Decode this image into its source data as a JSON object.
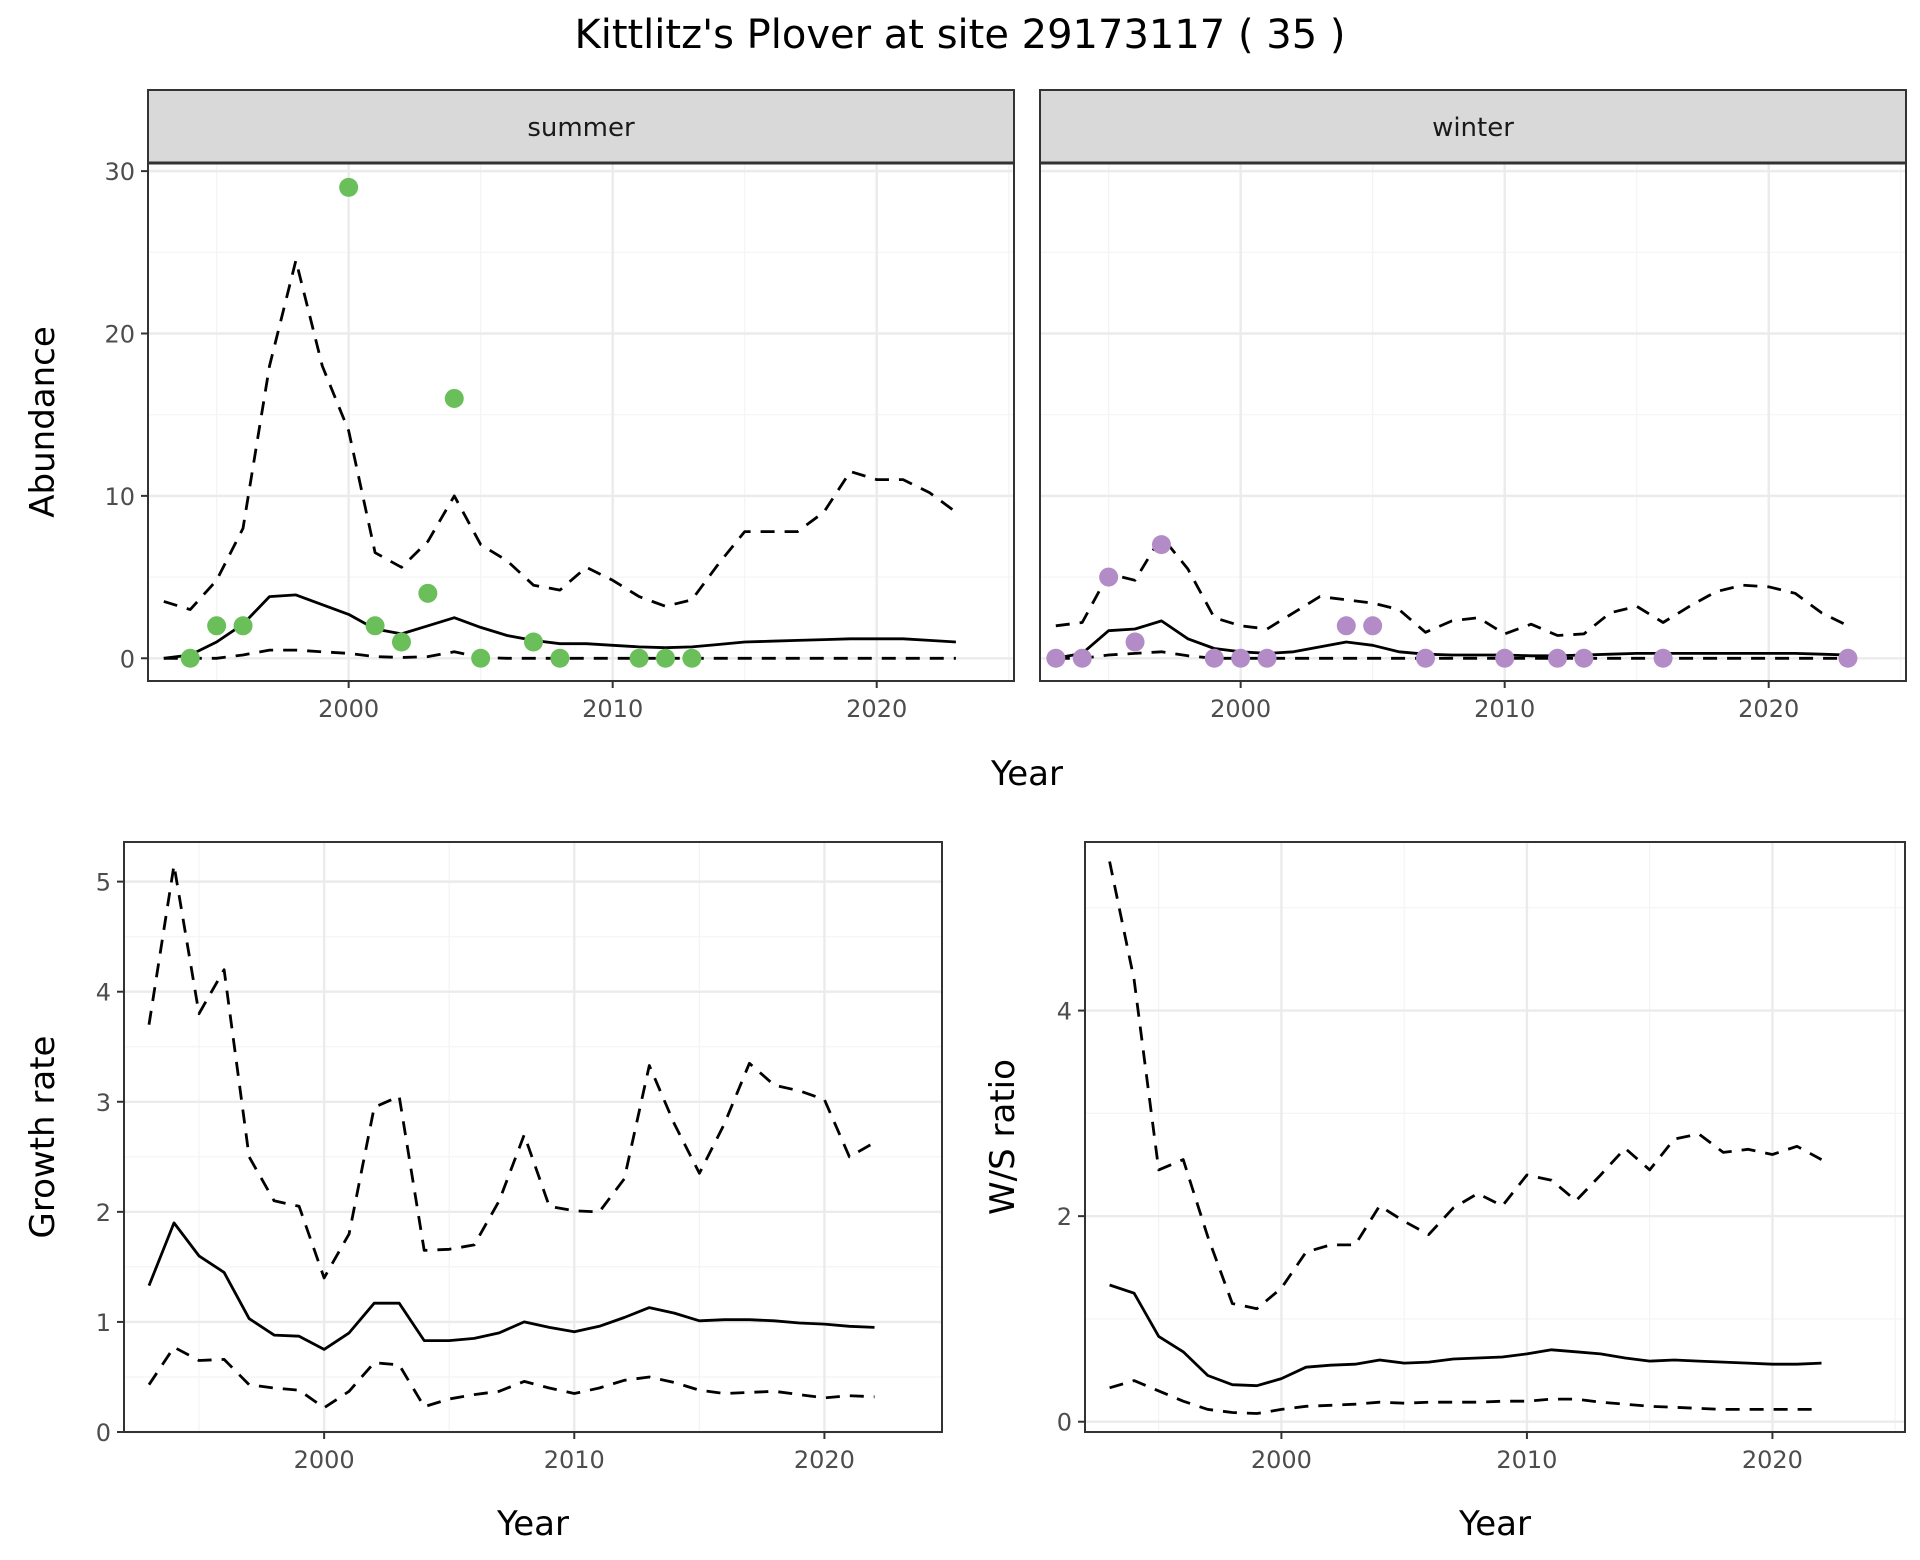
{
  "title": "Kittlitz's Plover at site 29173117 ( 35 )",
  "colors": {
    "summer_points": "#6abf5a",
    "winter_points": "#b38cc7",
    "line": "#000000",
    "panel_border": "#333333",
    "strip_fill": "#d9d9d9",
    "grid_major": "#ebebeb",
    "grid_minor": "#f4f4f4"
  },
  "chart_data": [
    {
      "id": "abundance",
      "type": "line",
      "facets": [
        {
          "strip": "summer",
          "point_color": "#6abf5a",
          "points": {
            "x": [
              1994,
              1995,
              1996,
              2000,
              2001,
              2002,
              2003,
              2004,
              2005,
              2007,
              2008,
              2011,
              2012,
              2013
            ],
            "y": [
              0,
              2,
              2,
              29,
              2,
              1,
              4,
              16,
              0,
              1,
              0,
              0,
              0,
              0
            ]
          },
          "mean": {
            "x": [
              1993,
              1994,
              1995,
              1996,
              1997,
              1998,
              1999,
              2000,
              2001,
              2002,
              2003,
              2004,
              2005,
              2006,
              2007,
              2008,
              2009,
              2010,
              2011,
              2012,
              2013,
              2014,
              2015,
              2016,
              2017,
              2018,
              2019,
              2020,
              2021,
              2022,
              2023
            ],
            "y": [
              0,
              0.2,
              1.0,
              2.1,
              3.8,
              3.9,
              3.3,
              2.7,
              1.8,
              1.5,
              2.0,
              2.5,
              1.9,
              1.4,
              1.1,
              0.9,
              0.9,
              0.8,
              0.7,
              0.65,
              0.7,
              0.85,
              1.0,
              1.05,
              1.1,
              1.15,
              1.2,
              1.2,
              1.2,
              1.1,
              1.0
            ]
          },
          "upper": {
            "x": [
              1993,
              1994,
              1995,
              1996,
              1997,
              1998,
              1999,
              2000,
              2001,
              2002,
              2003,
              2004,
              2005,
              2006,
              2007,
              2008,
              2009,
              2010,
              2011,
              2012,
              2013,
              2014,
              2015,
              2016,
              2017,
              2018,
              2019,
              2020,
              2021,
              2022,
              2023
            ],
            "y": [
              3.5,
              3.0,
              4.8,
              8.0,
              18.0,
              24.5,
              18.0,
              14.0,
              6.5,
              5.6,
              7.2,
              10.0,
              7.0,
              6.0,
              4.5,
              4.2,
              5.6,
              4.8,
              3.8,
              3.2,
              3.6,
              5.8,
              7.8,
              7.8,
              7.8,
              9.0,
              11.5,
              11.0,
              11.0,
              10.2,
              9.0
            ]
          },
          "lower": {
            "x": [
              1993,
              1994,
              1995,
              1996,
              1997,
              1998,
              1999,
              2000,
              2001,
              2002,
              2003,
              2004,
              2005,
              2006,
              2007,
              2008,
              2009,
              2010,
              2011,
              2012,
              2013,
              2014,
              2015,
              2016,
              2017,
              2018,
              2019,
              2020,
              2021,
              2022,
              2023
            ],
            "y": [
              0,
              0,
              0,
              0.2,
              0.5,
              0.5,
              0.4,
              0.3,
              0.1,
              0.05,
              0.1,
              0.4,
              0.05,
              0,
              0,
              0,
              0,
              0,
              0,
              0,
              0,
              0,
              0,
              0,
              0,
              0,
              0,
              0,
              0,
              0,
              0
            ]
          }
        },
        {
          "strip": "winter",
          "point_color": "#b38cc7",
          "points": {
            "x": [
              1993,
              1994,
              1995,
              1996,
              1997,
              1999,
              2000,
              2001,
              2004,
              2005,
              2007,
              2010,
              2012,
              2013,
              2016,
              2023
            ],
            "y": [
              0,
              0,
              5,
              1,
              7,
              0,
              0,
              0,
              2,
              2,
              0,
              0,
              0,
              0,
              0,
              0
            ]
          },
          "mean": {
            "x": [
              1993,
              1994,
              1995,
              1996,
              1997,
              1998,
              1999,
              2000,
              2001,
              2002,
              2003,
              2004,
              2005,
              2006,
              2007,
              2008,
              2009,
              2010,
              2011,
              2012,
              2013,
              2014,
              2015,
              2016,
              2017,
              2018,
              2019,
              2020,
              2021,
              2022,
              2023
            ],
            "y": [
              0,
              0.3,
              1.7,
              1.8,
              2.3,
              1.2,
              0.6,
              0.4,
              0.3,
              0.4,
              0.7,
              1.0,
              0.8,
              0.4,
              0.25,
              0.2,
              0.2,
              0.2,
              0.15,
              0.15,
              0.2,
              0.25,
              0.3,
              0.3,
              0.3,
              0.3,
              0.3,
              0.3,
              0.3,
              0.25,
              0.2
            ]
          },
          "upper": {
            "x": [
              1993,
              1994,
              1995,
              1996,
              1997,
              1998,
              1999,
              2000,
              2001,
              2002,
              2003,
              2004,
              2005,
              2006,
              2007,
              2008,
              2009,
              2010,
              2011,
              2012,
              2013,
              2014,
              2015,
              2016,
              2017,
              2018,
              2019,
              2020,
              2021,
              2022,
              2023
            ],
            "y": [
              2.0,
              2.2,
              5.2,
              4.8,
              7.5,
              5.5,
              2.5,
              2.0,
              1.8,
              2.8,
              3.8,
              3.6,
              3.4,
              3.0,
              1.6,
              2.3,
              2.5,
              1.5,
              2.1,
              1.4,
              1.5,
              2.8,
              3.2,
              2.2,
              3.2,
              4.1,
              4.5,
              4.4,
              4.0,
              2.8,
              2.0
            ]
          },
          "lower": {
            "x": [
              1993,
              1994,
              1995,
              1996,
              1997,
              1998,
              1999,
              2000,
              2001,
              2002,
              2003,
              2004,
              2005,
              2006,
              2007,
              2008,
              2009,
              2010,
              2011,
              2012,
              2013,
              2014,
              2015,
              2016,
              2017,
              2018,
              2019,
              2020,
              2021,
              2022,
              2023
            ],
            "y": [
              0,
              0,
              0.2,
              0.3,
              0.4,
              0.15,
              0,
              0,
              0,
              0,
              0,
              0,
              0,
              0,
              0,
              0,
              0,
              0,
              0,
              0,
              0,
              0,
              0,
              0,
              0,
              0,
              0,
              0,
              0,
              0,
              0
            ]
          }
        }
      ],
      "xlim": [
        1992.4,
        2025.2
      ],
      "ylim": [
        -1.4,
        30.5
      ],
      "x_ticks": [
        2000,
        2010,
        2020
      ],
      "y_ticks": [
        0,
        10,
        20,
        30
      ],
      "xlabel": "Year",
      "ylabel": "Abundance"
    },
    {
      "id": "growth",
      "type": "line",
      "series": [
        {
          "style": "solid",
          "x": [
            1993,
            1994,
            1995,
            1996,
            1997,
            1998,
            1999,
            2000,
            2001,
            2002,
            2003,
            2004,
            2005,
            2006,
            2007,
            2008,
            2009,
            2010,
            2011,
            2012,
            2013,
            2014,
            2015,
            2016,
            2017,
            2018,
            2019,
            2020,
            2021,
            2022
          ],
          "y": [
            1.33,
            1.9,
            1.6,
            1.45,
            1.03,
            0.88,
            0.87,
            0.75,
            0.9,
            1.17,
            1.17,
            0.83,
            0.83,
            0.85,
            0.9,
            1.0,
            0.95,
            0.91,
            0.96,
            1.04,
            1.13,
            1.08,
            1.01,
            1.02,
            1.02,
            1.01,
            0.99,
            0.98,
            0.96,
            0.95
          ]
        },
        {
          "style": "dashed",
          "x": [
            1993,
            1994,
            1995,
            1996,
            1997,
            1998,
            1999,
            2000,
            2001,
            2002,
            2003,
            2004,
            2005,
            2006,
            2007,
            2008,
            2009,
            2010,
            2011,
            2012,
            2013,
            2014,
            2015,
            2016,
            2017,
            2018,
            2019,
            2020,
            2021,
            2022
          ],
          "y": [
            3.7,
            5.15,
            3.8,
            4.2,
            2.5,
            2.1,
            2.05,
            1.4,
            1.8,
            2.95,
            3.05,
            1.65,
            1.66,
            1.7,
            2.1,
            2.7,
            2.05,
            2.01,
            2.0,
            2.3,
            3.33,
            2.8,
            2.35,
            2.8,
            3.35,
            3.15,
            3.1,
            3.02,
            2.5,
            2.63
          ]
        },
        {
          "style": "dashed",
          "x": [
            1993,
            1994,
            1995,
            1996,
            1997,
            1998,
            1999,
            2000,
            2001,
            2002,
            2003,
            2004,
            2005,
            2006,
            2007,
            2008,
            2009,
            2010,
            2011,
            2012,
            2013,
            2014,
            2015,
            2016,
            2017,
            2018,
            2019,
            2020,
            2021,
            2022
          ],
          "y": [
            0.43,
            0.77,
            0.65,
            0.66,
            0.43,
            0.4,
            0.38,
            0.22,
            0.37,
            0.63,
            0.61,
            0.23,
            0.3,
            0.34,
            0.37,
            0.46,
            0.4,
            0.35,
            0.4,
            0.47,
            0.5,
            0.45,
            0.38,
            0.35,
            0.36,
            0.37,
            0.34,
            0.31,
            0.33,
            0.32
          ]
        }
      ],
      "xlim": [
        1992.0,
        2024.7
      ],
      "ylim": [
        0,
        5.36
      ],
      "x_ticks": [
        2000,
        2010,
        2020
      ],
      "y_ticks": [
        0,
        1,
        2,
        3,
        4,
        5
      ],
      "xlabel": "Year",
      "ylabel": "Growth rate"
    },
    {
      "id": "ratio",
      "type": "line",
      "series": [
        {
          "style": "solid",
          "x": [
            1993,
            1994,
            1995,
            1996,
            1997,
            1998,
            1999,
            2000,
            2001,
            2002,
            2003,
            2004,
            2005,
            2006,
            2007,
            2008,
            2009,
            2010,
            2011,
            2012,
            2013,
            2014,
            2015,
            2016,
            2017,
            2018,
            2019,
            2020,
            2021,
            2022
          ],
          "y": [
            1.33,
            1.25,
            0.83,
            0.68,
            0.45,
            0.36,
            0.35,
            0.42,
            0.53,
            0.55,
            0.56,
            0.6,
            0.57,
            0.58,
            0.61,
            0.62,
            0.63,
            0.66,
            0.7,
            0.68,
            0.66,
            0.62,
            0.59,
            0.6,
            0.59,
            0.58,
            0.57,
            0.56,
            0.56,
            0.57
          ]
        },
        {
          "style": "dashed",
          "x": [
            1993,
            1994,
            1995,
            1996,
            1997,
            1998,
            1999,
            2000,
            2001,
            2002,
            2003,
            2004,
            2005,
            2006,
            2007,
            2008,
            2009,
            2010,
            2011,
            2012,
            2013,
            2014,
            2015,
            2016,
            2017,
            2018,
            2019,
            2020,
            2021,
            2022
          ],
          "y": [
            5.45,
            4.3,
            2.45,
            2.55,
            1.8,
            1.15,
            1.1,
            1.3,
            1.65,
            1.72,
            1.72,
            2.1,
            1.95,
            1.82,
            2.08,
            2.22,
            2.1,
            2.4,
            2.35,
            2.15,
            2.4,
            2.66,
            2.45,
            2.75,
            2.8,
            2.62,
            2.65,
            2.6,
            2.68,
            2.55
          ]
        },
        {
          "style": "dashed",
          "x": [
            1993,
            1994,
            1995,
            1996,
            1997,
            1998,
            1999,
            2000,
            2001,
            2002,
            2003,
            2004,
            2005,
            2006,
            2007,
            2008,
            2009,
            2010,
            2011,
            2012,
            2013,
            2014,
            2015,
            2016,
            2017,
            2018,
            2019,
            2020,
            2021,
            2022
          ],
          "y": [
            0.33,
            0.4,
            0.3,
            0.2,
            0.12,
            0.09,
            0.08,
            0.12,
            0.15,
            0.16,
            0.17,
            0.19,
            0.18,
            0.19,
            0.19,
            0.19,
            0.2,
            0.2,
            0.22,
            0.22,
            0.19,
            0.17,
            0.15,
            0.14,
            0.13,
            0.12,
            0.12,
            0.12,
            0.12,
            0.12
          ]
        }
      ],
      "xlim": [
        1992.0,
        2025.4
      ],
      "ylim": [
        -0.1,
        5.64
      ],
      "x_ticks": [
        2000,
        2010,
        2020
      ],
      "y_ticks": [
        0,
        2,
        4
      ],
      "xlabel": "Year",
      "ylabel": "W/S ratio"
    }
  ]
}
